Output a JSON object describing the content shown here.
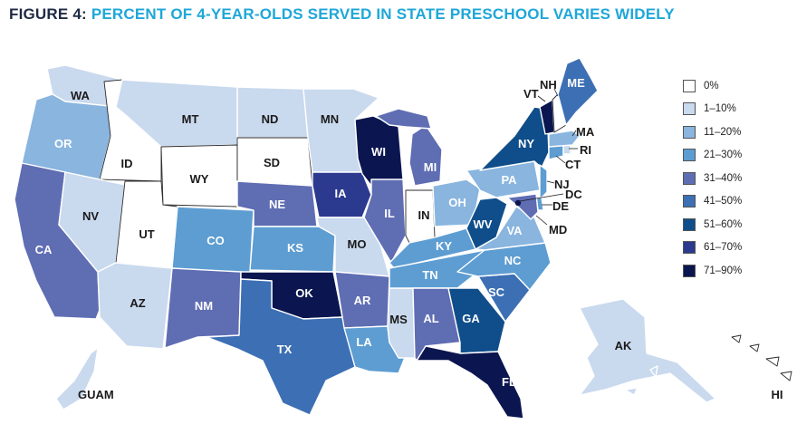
{
  "figure": {
    "label": "FIGURE 4:",
    "title": "PERCENT OF 4-YEAR-OLDS SERVED IN STATE PRESCHOOL VARIES WIDELY"
  },
  "colors": {
    "bin0": "#ffffff",
    "bin1": "#c9d9ee",
    "bin2": "#89b5df",
    "bin3": "#5d9dd2",
    "bin4": "#5f6db3",
    "bin5": "#3c6fb4",
    "bin6": "#0f4e8a",
    "bin7": "#2b3a8f",
    "bin8": "#0b1650",
    "label_light": "#ffffff",
    "label_dark": "#1a1a1a"
  },
  "legend": [
    {
      "label": "0%",
      "color": "#ffffff"
    },
    {
      "label": "1–10%",
      "color": "#c9d9ee"
    },
    {
      "label": "11–20%",
      "color": "#89b5df"
    },
    {
      "label": "21–30%",
      "color": "#5d9dd2"
    },
    {
      "label": "31–40%",
      "color": "#5f6db3"
    },
    {
      "label": "41–50%",
      "color": "#3c6fb4"
    },
    {
      "label": "51–60%",
      "color": "#0f4e8a"
    },
    {
      "label": "61–70%",
      "color": "#2b3a8f"
    },
    {
      "label": "71–90%",
      "color": "#0b1650"
    }
  ],
  "states": [
    {
      "abbr": "WA",
      "bin": "1–10%"
    },
    {
      "abbr": "OR",
      "bin": "11–20%"
    },
    {
      "abbr": "CA",
      "bin": "31–40%"
    },
    {
      "abbr": "ID",
      "bin": "0%"
    },
    {
      "abbr": "NV",
      "bin": "1–10%"
    },
    {
      "abbr": "UT",
      "bin": "0%"
    },
    {
      "abbr": "AZ",
      "bin": "1–10%"
    },
    {
      "abbr": "MT",
      "bin": "1–10%"
    },
    {
      "abbr": "WY",
      "bin": "0%"
    },
    {
      "abbr": "CO",
      "bin": "21–30%"
    },
    {
      "abbr": "NM",
      "bin": "31–40%"
    },
    {
      "abbr": "ND",
      "bin": "1–10%"
    },
    {
      "abbr": "SD",
      "bin": "0%"
    },
    {
      "abbr": "NE",
      "bin": "31–40%"
    },
    {
      "abbr": "KS",
      "bin": "21–30%"
    },
    {
      "abbr": "OK",
      "bin": "71–90%"
    },
    {
      "abbr": "TX",
      "bin": "41–50%"
    },
    {
      "abbr": "MN",
      "bin": "1–10%"
    },
    {
      "abbr": "IA",
      "bin": "61–70%"
    },
    {
      "abbr": "MO",
      "bin": "1–10%"
    },
    {
      "abbr": "AR",
      "bin": "31–40%"
    },
    {
      "abbr": "LA",
      "bin": "21–30%"
    },
    {
      "abbr": "WI",
      "bin": "71–90%"
    },
    {
      "abbr": "IL",
      "bin": "31–40%"
    },
    {
      "abbr": "MS",
      "bin": "1–10%"
    },
    {
      "abbr": "MI",
      "bin": "31–40%"
    },
    {
      "abbr": "IN",
      "bin": "0%"
    },
    {
      "abbr": "OH",
      "bin": "11–20%"
    },
    {
      "abbr": "KY",
      "bin": "21–30%"
    },
    {
      "abbr": "TN",
      "bin": "21–30%"
    },
    {
      "abbr": "AL",
      "bin": "31–40%"
    },
    {
      "abbr": "GA",
      "bin": "51–60%"
    },
    {
      "abbr": "FL",
      "bin": "71–90%"
    },
    {
      "abbr": "SC",
      "bin": "41–50%"
    },
    {
      "abbr": "NC",
      "bin": "21–30%"
    },
    {
      "abbr": "VA",
      "bin": "11–20%"
    },
    {
      "abbr": "WV",
      "bin": "51–60%"
    },
    {
      "abbr": "PA",
      "bin": "11–20%"
    },
    {
      "abbr": "NY",
      "bin": "51–60%"
    },
    {
      "abbr": "NJ",
      "bin": "21–30%"
    },
    {
      "abbr": "DE",
      "bin": "21–30%"
    },
    {
      "abbr": "MD",
      "bin": "31–40%"
    },
    {
      "abbr": "DC",
      "bin": "71–90%"
    },
    {
      "abbr": "CT",
      "bin": "21–30%"
    },
    {
      "abbr": "RI",
      "bin": "1–10%"
    },
    {
      "abbr": "MA",
      "bin": "11–20%"
    },
    {
      "abbr": "VT",
      "bin": "71–90%"
    },
    {
      "abbr": "NH",
      "bin": "0%"
    },
    {
      "abbr": "ME",
      "bin": "41–50%"
    },
    {
      "abbr": "AK",
      "bin": "1–10%"
    },
    {
      "abbr": "HI",
      "bin": "0%"
    },
    {
      "abbr": "GUAM",
      "bin": "1–10%"
    }
  ]
}
